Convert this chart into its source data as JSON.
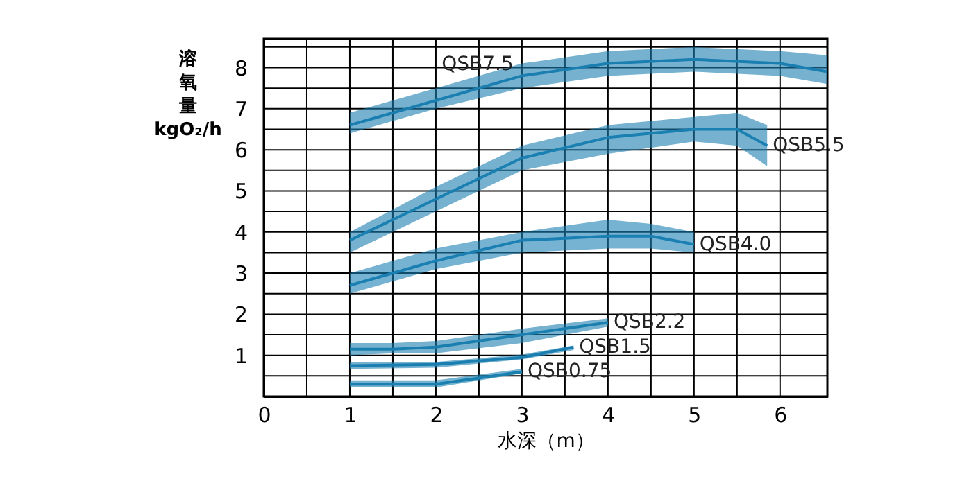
{
  "chart_data": {
    "type": "line",
    "xlabel": "水深（m）",
    "ylabel": "溶氧量 kgO₂/h",
    "xlim": [
      0,
      6.55
    ],
    "ylim": [
      0,
      8.7
    ],
    "xticks": [
      0,
      {
        "value": 0.5,
        "label": null
      },
      1,
      {
        "value": 1.5,
        "label": null
      },
      2,
      {
        "value": 2.5,
        "label": null
      },
      3,
      {
        "value": 3.5,
        "label": null
      },
      4,
      {
        "value": 4.5,
        "label": null
      },
      5,
      {
        "value": 5.5,
        "label": null
      },
      6
    ],
    "yticks": [
      {
        "value": 0,
        "label": null
      },
      {
        "value": 0.5,
        "label": null
      },
      1,
      {
        "value": 1.5,
        "label": null
      },
      2,
      {
        "value": 2.5,
        "label": null
      },
      3,
      {
        "value": 3.5,
        "label": null
      },
      4,
      {
        "value": 4.5,
        "label": null
      },
      5,
      {
        "value": 5.5,
        "label": null
      },
      6,
      {
        "value": 6.5,
        "label": null
      },
      7,
      {
        "value": 7.5,
        "label": null
      },
      8,
      {
        "value": 8.5,
        "label": null
      }
    ],
    "grid": true,
    "series": [
      {
        "name": "QSB7.5",
        "color": "#1a7fb0",
        "x": [
          1,
          2,
          3,
          4,
          5,
          6,
          6.55
        ],
        "values": [
          6.6,
          7.2,
          7.8,
          8.1,
          8.2,
          8.1,
          7.9
        ],
        "lower": [
          6.4,
          7.0,
          7.5,
          7.8,
          7.9,
          7.8,
          7.6
        ],
        "upper": [
          6.9,
          7.5,
          8.1,
          8.4,
          8.5,
          8.4,
          8.3
        ]
      },
      {
        "name": "QSB5.5",
        "color": "#1a7fb1",
        "x": [
          1,
          2,
          3,
          4,
          5,
          5.5,
          5.85
        ],
        "values": [
          3.8,
          4.8,
          5.8,
          6.3,
          6.5,
          6.5,
          6.1
        ],
        "lower": [
          3.5,
          4.5,
          5.5,
          5.9,
          6.2,
          6.1,
          5.6
        ],
        "upper": [
          4.0,
          5.1,
          6.1,
          6.6,
          6.8,
          6.9,
          6.6
        ]
      },
      {
        "name": "QSB4.0",
        "color": "#1a7fb2",
        "x": [
          1,
          2,
          3,
          4,
          4.5,
          5
        ],
        "values": [
          2.7,
          3.3,
          3.8,
          3.9,
          3.9,
          3.7
        ],
        "lower": [
          2.5,
          3.1,
          3.5,
          3.6,
          3.6,
          3.5
        ],
        "upper": [
          3.0,
          3.6,
          4.0,
          4.3,
          4.2,
          4.0
        ]
      },
      {
        "name": "QSB2.2",
        "color": "#1a7faf",
        "x": [
          1,
          1.5,
          2,
          3,
          4
        ],
        "values": [
          1.15,
          1.15,
          1.2,
          1.5,
          1.8
        ],
        "lower": [
          1.0,
          1.05,
          1.05,
          1.3,
          1.7
        ],
        "upper": [
          1.3,
          1.3,
          1.35,
          1.65,
          1.9
        ]
      },
      {
        "name": "QSB1.5",
        "color": "#1a7eb0",
        "x": [
          1,
          2,
          3,
          3.6
        ],
        "values": [
          0.75,
          0.78,
          0.95,
          1.2
        ],
        "lower": [
          0.67,
          0.7,
          0.9,
          1.13
        ],
        "upper": [
          0.84,
          0.84,
          1.02,
          1.24
        ]
      },
      {
        "name": "QSB0.75",
        "color": "#1a80b0",
        "x": [
          1,
          2,
          3
        ],
        "values": [
          0.3,
          0.3,
          0.6
        ],
        "lower": [
          0.22,
          0.22,
          0.56
        ],
        "upper": [
          0.39,
          0.39,
          0.67
        ]
      }
    ]
  }
}
